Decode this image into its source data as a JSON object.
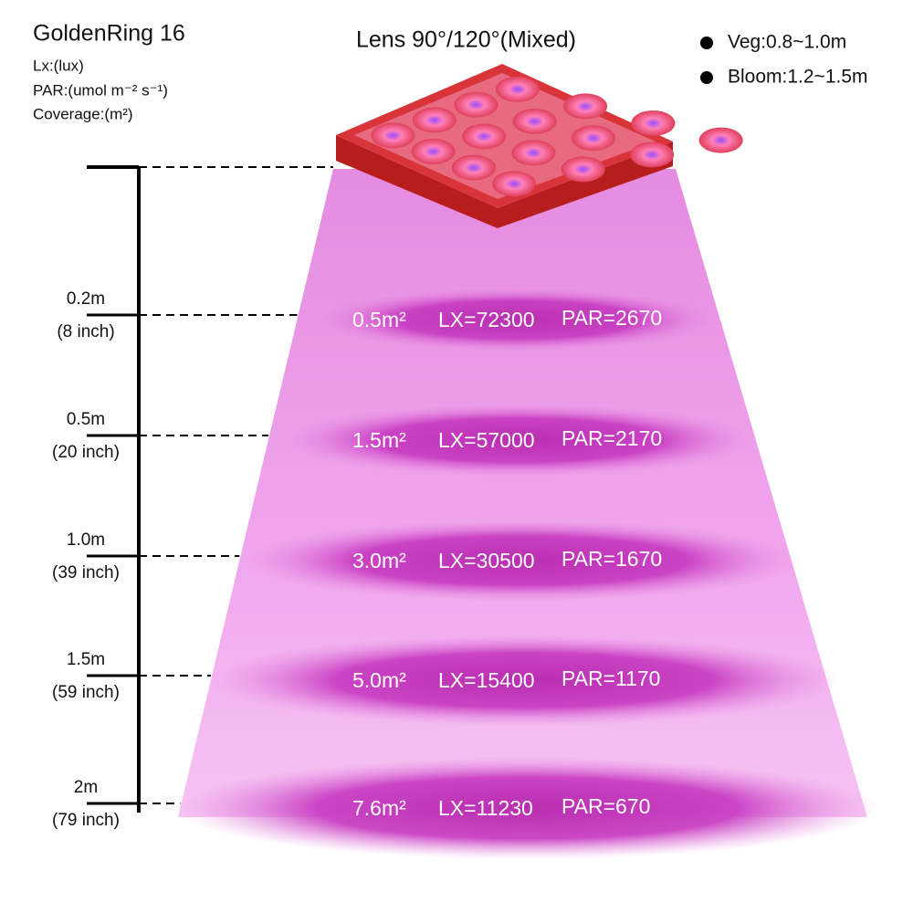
{
  "header": {
    "title": "GoldenRing 16",
    "units": [
      "Lx:(lux)",
      "PAR:(umol m⁻² s⁻¹)",
      "Coverage:(m²)"
    ]
  },
  "lens": "Lens 90°/120°(Mixed)",
  "legend": [
    "Veg:0.8~1.0m",
    "Bloom:1.2~1.5m"
  ],
  "levels": [
    {
      "distance": "0.2m",
      "inch": "(8 inch)",
      "area": "0.5m²",
      "lx": "LX=72300",
      "par": "PAR=2670"
    },
    {
      "distance": "0.5m",
      "inch": "(20 inch)",
      "area": "1.5m²",
      "lx": "LX=57000",
      "par": "PAR=2170"
    },
    {
      "distance": "1.0m",
      "inch": "(39 inch)",
      "area": "3.0m²",
      "lx": "LX=30500",
      "par": "PAR=1670"
    },
    {
      "distance": "1.5m",
      "inch": "(59 inch)",
      "area": "5.0m²",
      "lx": "LX=15400",
      "par": "PAR=1170"
    },
    {
      "distance": "2m",
      "inch": "(79 inch)",
      "area": "7.6m²",
      "lx": "LX=11230",
      "par": "PAR=670"
    }
  ]
}
